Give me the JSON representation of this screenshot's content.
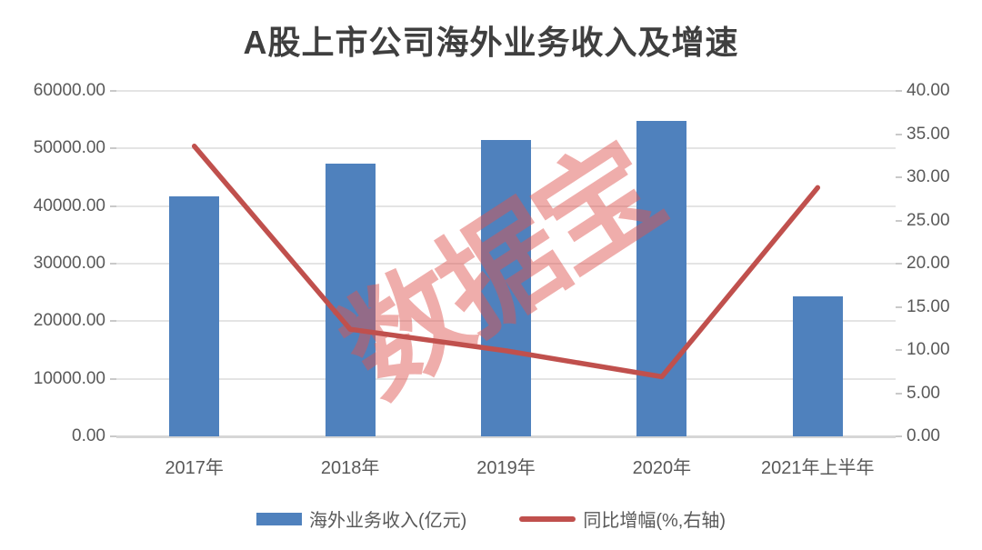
{
  "title": "A股上市公司海外业务收入及增速",
  "watermark": "数据宝",
  "colors": {
    "bar": "#4f81bd",
    "line": "#c0504d",
    "watermark": "rgba(222,84,80,0.48)",
    "title_text": "#3f3f3f",
    "axis_text": "#595959",
    "gridline": "#e4e4e4"
  },
  "chart_data": {
    "type": "bar+line combo",
    "categories": [
      "2017年",
      "2018年",
      "2019年",
      "2020年",
      "2021年上半年"
    ],
    "series": [
      {
        "name": "海外业务收入(亿元)",
        "type": "bar",
        "axis": "left",
        "values": [
          41700,
          47400,
          51500,
          54800,
          24300
        ]
      },
      {
        "name": "同比增幅(%,右轴)",
        "type": "line",
        "axis": "right",
        "values": [
          33.6,
          12.4,
          9.9,
          6.9,
          28.8
        ]
      }
    ],
    "left_axis": {
      "min": 0,
      "max": 60000,
      "step": 10000,
      "tick_labels": [
        "60000.00",
        "50000.00",
        "40000.00",
        "30000.00",
        "20000.00",
        "10000.00",
        "0.00"
      ]
    },
    "right_axis": {
      "min": 0,
      "max": 40,
      "step": 5,
      "tick_labels": [
        "40.00",
        "35.00",
        "30.00",
        "25.00",
        "20.00",
        "15.00",
        "10.00",
        "5.00",
        "0.00"
      ]
    },
    "grid": true,
    "legend_position": "bottom"
  }
}
